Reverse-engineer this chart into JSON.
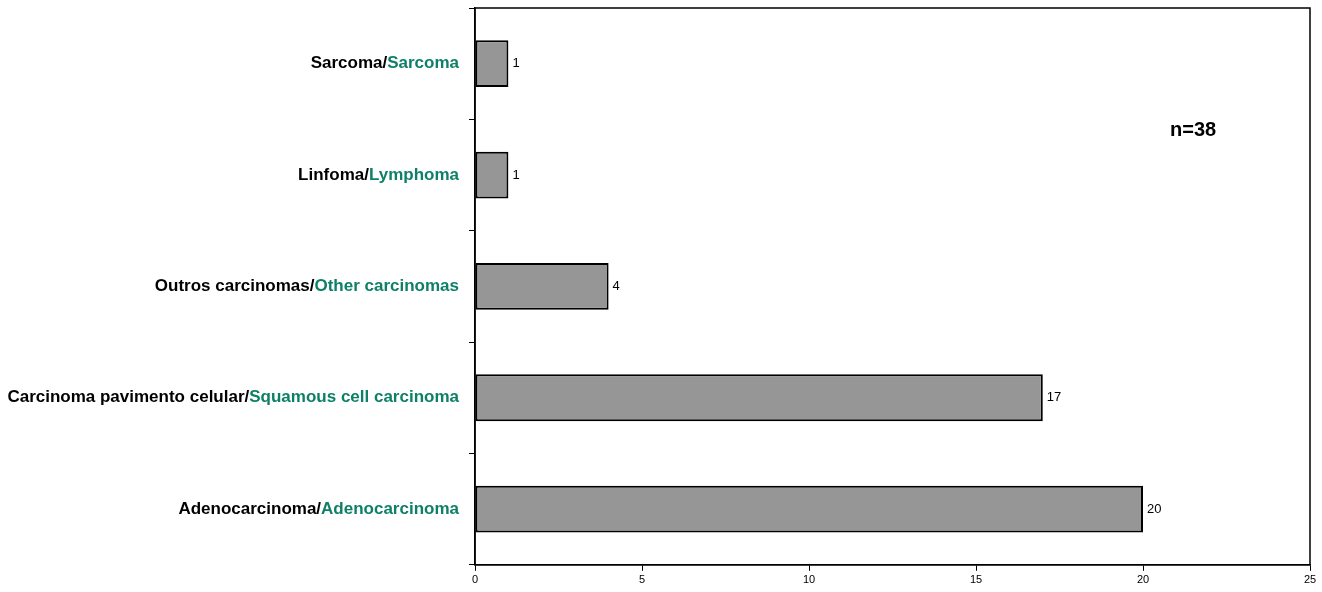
{
  "chart_data": {
    "type": "bar",
    "orientation": "horizontal",
    "categories": [
      "Sarcoma/Sarcoma",
      "Linfoma/Lymphoma",
      "Outros carcinomas/Other carcinomas",
      "Carcinoma pavimento celular/Squamous cell carcinoma",
      "Adenocarcinoma/Adenocarcinoma"
    ],
    "values": [
      1,
      1,
      4,
      17,
      20
    ],
    "color": "#969696",
    "xlim": [
      0,
      25
    ],
    "xticks": [
      0,
      5,
      10,
      15,
      20,
      25
    ],
    "data_labels": true,
    "grid": false,
    "legend": false,
    "annotations": [
      "n=38"
    ]
  }
}
